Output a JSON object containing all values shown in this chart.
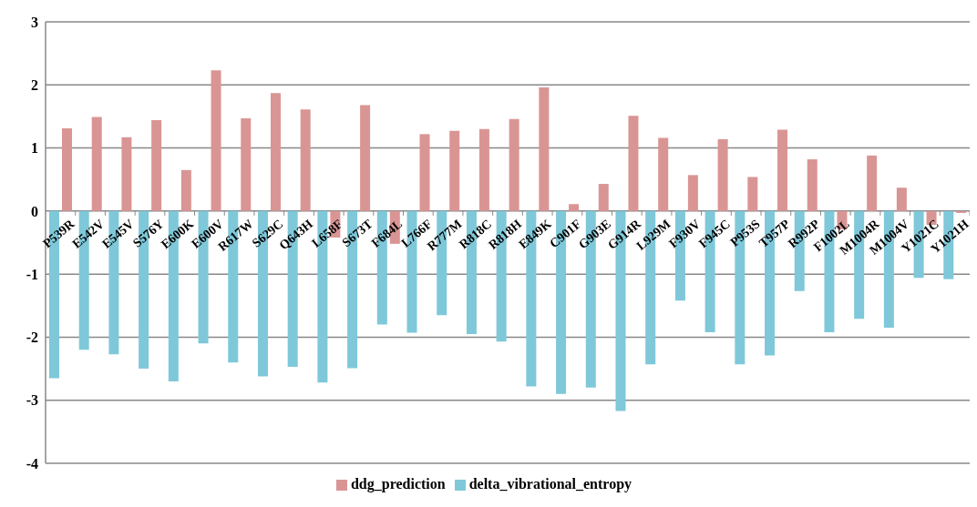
{
  "chart_data": {
    "type": "bar",
    "categories": [
      "P539R",
      "E542V",
      "E545V",
      "S576Y",
      "E600K",
      "E600V",
      "R617W",
      "S629C",
      "Q643H",
      "L658F",
      "S673T",
      "F684L",
      "L766F",
      "R777M",
      "R818C",
      "R818H",
      "E849K",
      "C901F",
      "G903E",
      "G914R",
      "L929M",
      "F930V",
      "F945C",
      "P953S",
      "T957P",
      "R992P",
      "F1002L",
      "M1004R",
      "M1004V",
      "Y1021C",
      "Y1021H"
    ],
    "series": [
      {
        "name": "delta_vibrational_entropy",
        "color": "#7ec8d9",
        "values": [
          -2.65,
          -2.2,
          -2.27,
          -2.5,
          -2.7,
          -2.1,
          -2.4,
          -2.62,
          -2.47,
          -2.72,
          -2.49,
          -1.8,
          -1.93,
          -1.65,
          -1.95,
          -2.07,
          -2.78,
          -2.9,
          -2.8,
          -3.17,
          -2.43,
          -1.42,
          -1.92,
          -2.43,
          -2.29,
          -1.27,
          -1.92,
          -1.71,
          -1.85,
          -1.06,
          -1.08
        ]
      },
      {
        "name": "ddg_prediction",
        "color": "#d99594",
        "values": [
          1.31,
          1.49,
          1.17,
          1.44,
          0.65,
          2.23,
          1.47,
          1.87,
          1.61,
          -0.42,
          1.68,
          -0.52,
          1.22,
          1.27,
          1.3,
          1.46,
          1.96,
          0.11,
          0.43,
          1.51,
          1.16,
          0.57,
          1.14,
          0.54,
          1.29,
          0.82,
          -0.29,
          0.88,
          0.37,
          -0.22,
          -0.03
        ]
      }
    ],
    "ylim": [
      -4,
      3
    ],
    "yticks": [
      -4,
      -3,
      -2,
      -1,
      0,
      1,
      2,
      3
    ],
    "grid": "y",
    "legend": "bottom"
  }
}
